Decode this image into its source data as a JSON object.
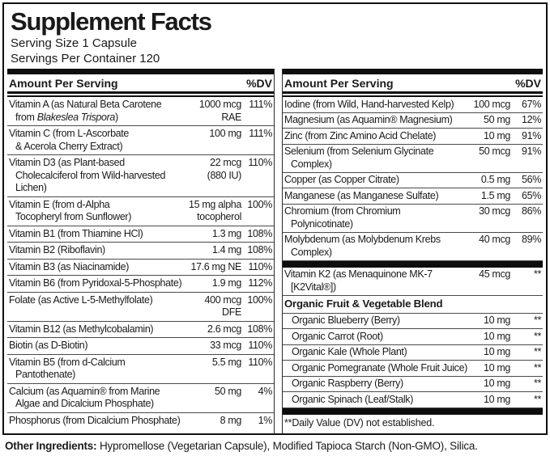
{
  "title": "Supplement Facts",
  "serving_size": "Serving Size 1 Capsule",
  "servings_per_container": "Servings Per Container 120",
  "columns": {
    "left": {
      "header": {
        "amount": "Amount Per Serving",
        "dv": "%DV"
      },
      "rows": [
        {
          "type": "nutrient",
          "parts": [
            {
              "t": "Vitamin A (as Natural Beta Carotene\nfrom "
            },
            {
              "t": "Blakeslea Trispora",
              "italic": true
            },
            {
              "t": ")"
            }
          ],
          "amount": "1000 mcg\nRAE",
          "dv": "111%"
        },
        {
          "type": "nutrient",
          "label": "Vitamin C (from L-Ascorbate\n& Acerola Cherry Extract)",
          "amount": "100 mg",
          "dv": "111%"
        },
        {
          "type": "nutrient",
          "label": "Vitamin D3 (as Plant-based\nCholecalciferol from Wild-harvested\nLichen)",
          "amount": "22 mcg\n(880 IU)",
          "dv": "110%"
        },
        {
          "type": "nutrient",
          "label": "Vitamin E (from d-Alpha\nTocopheryl from Sunflower)",
          "amount": "15 mg alpha\ntocopherol",
          "dv": "100%"
        },
        {
          "type": "nutrient",
          "label": "Vitamin B1 (from Thiamine HCl)",
          "amount": "1.3 mg",
          "dv": "108%"
        },
        {
          "type": "nutrient",
          "label": "Vitamin B2 (Riboflavin)",
          "amount": "1.4 mg",
          "dv": "108%"
        },
        {
          "type": "nutrient",
          "label": "Vitamin B3 (as Niacinamide)",
          "amount": "17.6 mg NE",
          "dv": "110%"
        },
        {
          "type": "nutrient",
          "label": "Vitamin B6 (from Pyridoxal-5-Phosphate)",
          "amount": "1.9 mg",
          "dv": "112%"
        },
        {
          "type": "nutrient",
          "label": "Folate (as Active L-5-Methylfolate)",
          "amount": "400 mcg\nDFE",
          "dv": "100%"
        },
        {
          "type": "nutrient",
          "label": "Vitamin B12 (as Methylcobalamin)",
          "amount": "2.6 mcg",
          "dv": "108%"
        },
        {
          "type": "nutrient",
          "label": "Biotin (as D-Biotin)",
          "amount": "33 mcg",
          "dv": "110%"
        },
        {
          "type": "nutrient",
          "label": "Vitamin B5 (from d-Calcium\nPantothenate)",
          "amount": "5.5 mg",
          "dv": "110%"
        },
        {
          "type": "nutrient",
          "label": "Calcium (as Aquamin® from Marine\nAlgae and Dicalcium Phosphate)",
          "amount": "50 mg",
          "dv": "4%"
        },
        {
          "type": "nutrient",
          "label": "Phosphorus (from Dicalcium Phosphate)",
          "amount": "8 mg",
          "dv": "1%"
        }
      ]
    },
    "right": {
      "header": {
        "amount": "Amount Per Serving",
        "dv": "%DV"
      },
      "rows": [
        {
          "type": "nutrient",
          "label": "Iodine (from Wild, Hand-harvested Kelp)",
          "amount": "100 mcg",
          "dv": "67%"
        },
        {
          "type": "nutrient",
          "label": "Magnesium (as Aquamin® Magnesium)",
          "amount": "50 mg",
          "dv": "12%"
        },
        {
          "type": "nutrient",
          "label": "Zinc (from Zinc Amino Acid Chelate)",
          "amount": "10 mg",
          "dv": "91%"
        },
        {
          "type": "nutrient",
          "label": "Selenium (from Selenium Glycinate\nComplex)",
          "amount": "50 mcg",
          "dv": "91%"
        },
        {
          "type": "nutrient",
          "label": "Copper (as Copper Citrate)",
          "amount": "0.5 mg",
          "dv": "56%"
        },
        {
          "type": "nutrient",
          "label": "Manganese (as Manganese Sulfate)",
          "amount": "1.5 mg",
          "dv": "65%"
        },
        {
          "type": "nutrient",
          "label": "Chromium (from Chromium\nPolynicotinate)",
          "amount": "30 mcg",
          "dv": "86%"
        },
        {
          "type": "nutrient",
          "label": "Molybdenum (as Molybdenum Krebs\nComplex)",
          "amount": "40 mcg",
          "dv": "89%"
        },
        {
          "type": "bar"
        },
        {
          "type": "nutrient",
          "label": "Vitamin K2 (as Menaquinone MK-7\n[K2Vital®])",
          "amount": "45 mcg",
          "dv": "**"
        },
        {
          "type": "section",
          "label": "Organic Fruit & Vegetable Blend"
        },
        {
          "type": "nutrient",
          "indent": true,
          "label": "Organic Blueberry (Berry)",
          "amount": "10 mg",
          "dv": "**"
        },
        {
          "type": "nutrient",
          "indent": true,
          "label": "Organic Carrot (Root)",
          "amount": "10 mg",
          "dv": "**"
        },
        {
          "type": "nutrient",
          "indent": true,
          "label": "Organic Kale (Whole Plant)",
          "amount": "10 mg",
          "dv": "**"
        },
        {
          "type": "nutrient",
          "indent": true,
          "label": "Organic Pomegranate (Whole Fruit Juice)",
          "amount": "10 mg",
          "dv": "**"
        },
        {
          "type": "nutrient",
          "indent": true,
          "label": "Organic Raspberry (Berry)",
          "amount": "10 mg",
          "dv": "**"
        },
        {
          "type": "nutrient",
          "indent": true,
          "label": "Organic Spinach (Leaf/Stalk)",
          "amount": "10 mg",
          "dv": "**"
        },
        {
          "type": "bar"
        },
        {
          "type": "footnote",
          "label": "**Daily Value (DV) not established."
        }
      ]
    }
  },
  "footer": {
    "other_ingredients_label": "Other Ingredients:",
    "other_ingredients_text": " Hypromellose (Vegetarian Capsule), Modified Tapioca Starch (Non-GMO), Silica."
  },
  "colors": {
    "text": "#1a1a1a",
    "thick_bar": "#0d0d0d",
    "hairline": "#4a4a4a",
    "border": "#111111",
    "background": "#ffffff"
  }
}
